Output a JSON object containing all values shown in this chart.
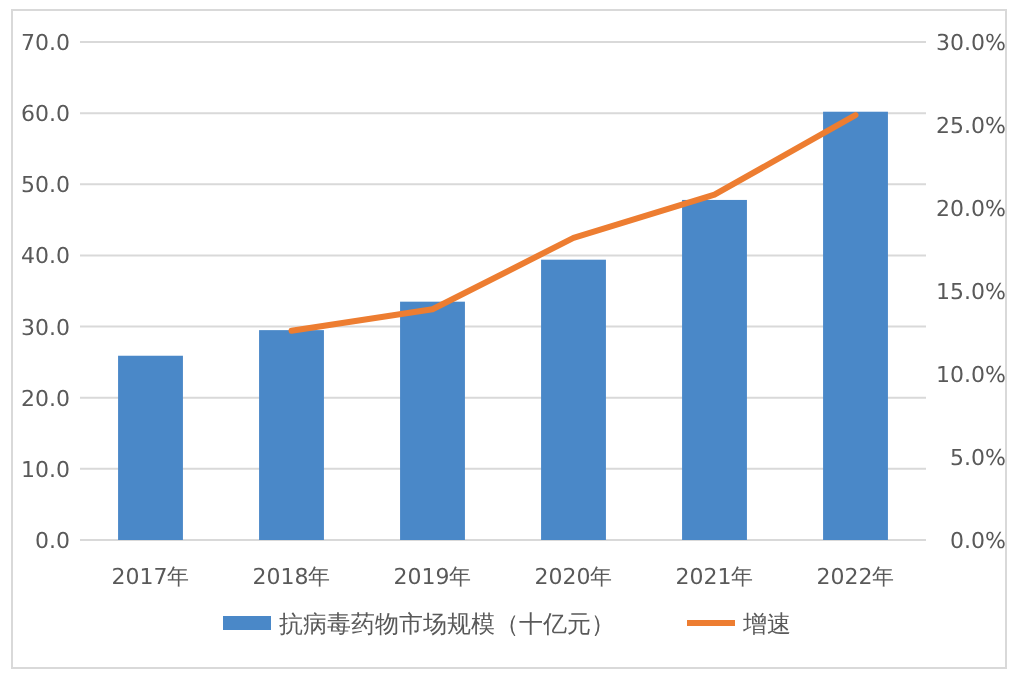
{
  "chart_data": {
    "type": "bar",
    "categories": [
      "2017年",
      "2018年",
      "2019年",
      "2020年",
      "2021年",
      "2022年"
    ],
    "series": [
      {
        "name": "抗病毒药物市场规模（十亿元）",
        "color": "#4a88c8",
        "values": [
          25.9,
          29.5,
          33.5,
          39.4,
          47.8,
          60.2
        ]
      },
      {
        "name": "增速",
        "type": "line",
        "axis": "y2",
        "color": "#ed7d31",
        "values": [
          null,
          12.6,
          13.9,
          18.2,
          20.8,
          25.6
        ]
      }
    ],
    "ylim": [
      0,
      70
    ],
    "yticks": [
      {
        "value": 0,
        "label": "0.0"
      },
      {
        "value": 10,
        "label": "10.0"
      },
      {
        "value": 20,
        "label": "20.0"
      },
      {
        "value": 30,
        "label": "30.0"
      },
      {
        "value": 40,
        "label": "40.0"
      },
      {
        "value": 50,
        "label": "50.0"
      },
      {
        "value": 60,
        "label": "60.0"
      },
      {
        "value": 70,
        "label": "70.0"
      }
    ],
    "y2lim": [
      0,
      30
    ],
    "y2ticks": [
      {
        "value": 0,
        "label": "0.0%"
      },
      {
        "value": 5,
        "label": "5.0%"
      },
      {
        "value": 10,
        "label": "10.0%"
      },
      {
        "value": 15,
        "label": "15.0%"
      },
      {
        "value": 20,
        "label": "20.0%"
      },
      {
        "value": 25,
        "label": "25.0%"
      },
      {
        "value": 30,
        "label": "30.0%"
      }
    ],
    "grid": "y",
    "legend": "bottom"
  }
}
